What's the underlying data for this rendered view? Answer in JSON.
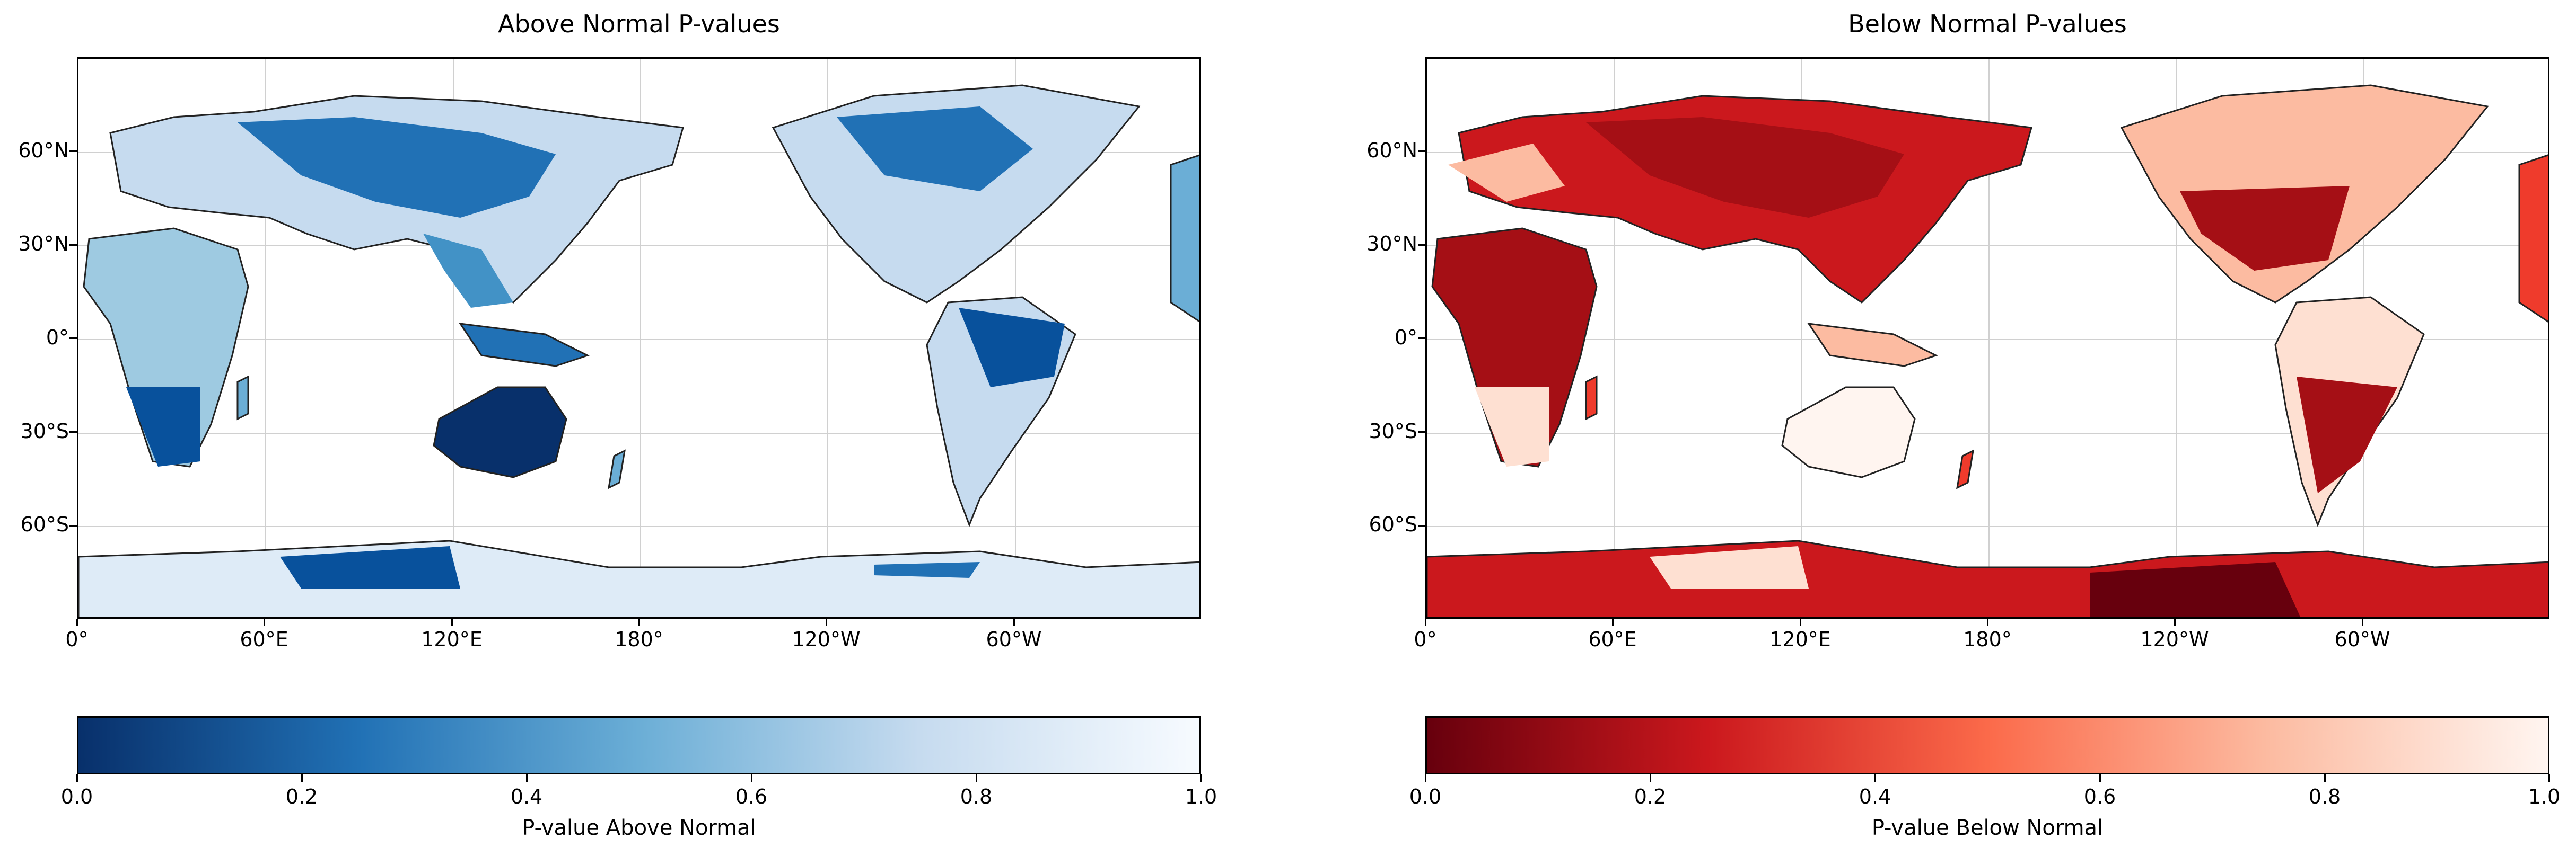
{
  "panels": [
    {
      "title": "Above Normal P-values",
      "colormap": "Blues",
      "colorbar_label": "P-value Above Normal",
      "colors": {
        "low": "#08306b",
        "mid": "#6baed6",
        "high": "#f7fbff"
      }
    },
    {
      "title": "Below Normal P-values",
      "colormap": "Reds",
      "colorbar_label": "P-value Below Normal",
      "colors": {
        "low": "#67000d",
        "mid": "#fb6a4a",
        "high": "#fff5f0"
      }
    }
  ],
  "map": {
    "projection": "PlateCarree, central longitude 180",
    "lat_ticks": [
      "60°N",
      "30°N",
      "0°",
      "30°S",
      "60°S"
    ],
    "lon_ticks": [
      "0°",
      "60°E",
      "120°E",
      "180°",
      "120°W",
      "60°W"
    ],
    "gridlines": true
  },
  "colorbar": {
    "ticks": [
      "0.0",
      "0.2",
      "0.4",
      "0.6",
      "0.8",
      "1.0"
    ],
    "range": [
      0.0,
      1.0
    ]
  }
}
